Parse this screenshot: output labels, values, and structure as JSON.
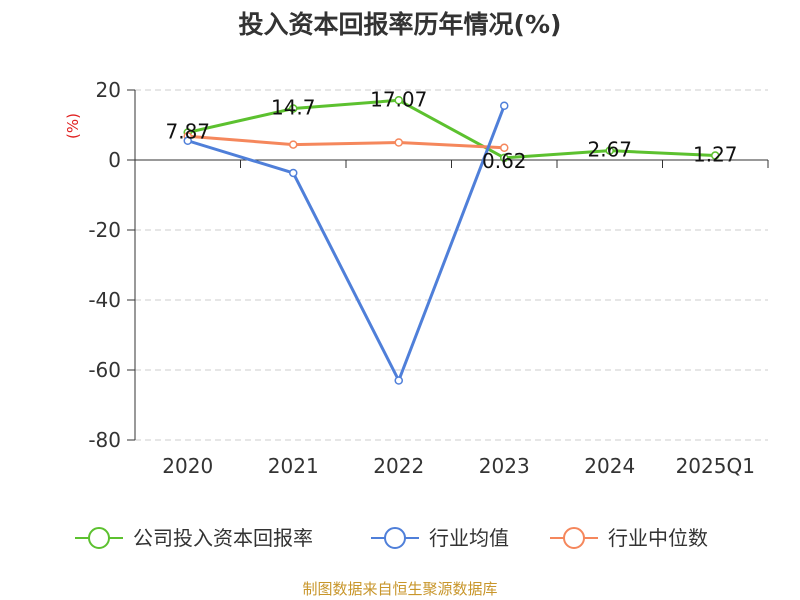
{
  "title": "投入资本回报率历年情况(%)",
  "source": "制图数据来自恒生聚源数据库",
  "chart_data": {
    "type": "line",
    "title": "投入资本回报率历年情况(%)",
    "ylabel": "(%)",
    "xlabel": "",
    "categories": [
      "2020",
      "2021",
      "2022",
      "2023",
      "2024",
      "2025Q1"
    ],
    "ylim": [
      -80,
      20
    ],
    "yticks": [
      20,
      0,
      -20,
      -40,
      -60,
      -80
    ],
    "grid": true,
    "legend_position": "bottom",
    "series": [
      {
        "name": "公司投入资本回报率",
        "color": "#5cc12f",
        "values": [
          7.87,
          14.7,
          17.07,
          0.62,
          2.67,
          1.27
        ],
        "labels": [
          "7.87",
          "14.7",
          "17.07",
          "0.62",
          "2.67",
          "1.27"
        ]
      },
      {
        "name": "行业均值",
        "color": "#4f7fd9",
        "values": [
          5.5,
          -3.7,
          -63,
          15.5,
          null,
          null
        ]
      },
      {
        "name": "行业中位数",
        "color": "#f5875c",
        "values": [
          6.8,
          4.4,
          5.0,
          3.5,
          null,
          null
        ]
      }
    ]
  }
}
